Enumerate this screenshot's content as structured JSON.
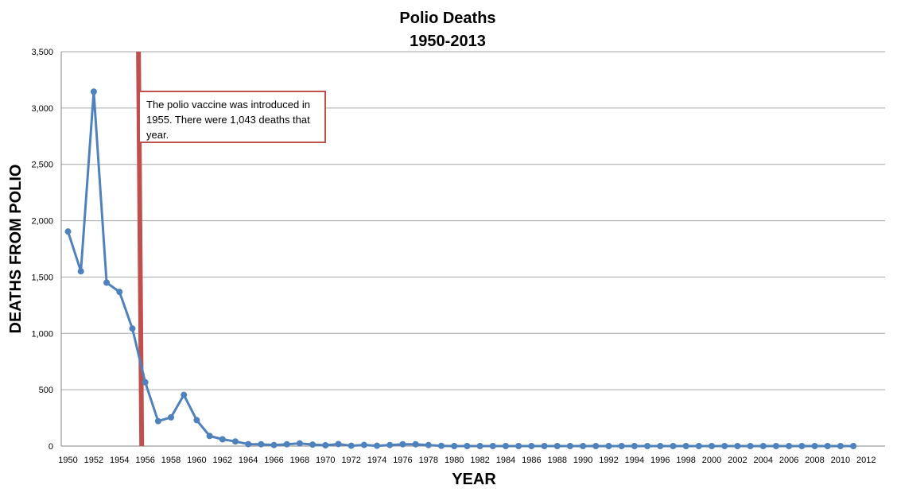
{
  "chart_data": {
    "type": "line",
    "title": "Polio Deaths",
    "subtitle": "1950-2013",
    "xlabel": "YEAR",
    "ylabel": "DEATHS FROM POLIO",
    "ylim": [
      0,
      3500
    ],
    "yticks": [
      0,
      500,
      1000,
      1500,
      2000,
      2500,
      3000,
      3500
    ],
    "ytick_labels": [
      "0",
      "500",
      "1,000",
      "1,500",
      "2,000",
      "2,500",
      "3,000",
      "3,500"
    ],
    "xlim": [
      1950,
      2012
    ],
    "xtick_labels": [
      "1950",
      "1952",
      "1954",
      "1956",
      "1958",
      "1960",
      "1962",
      "1964",
      "1966",
      "1968",
      "1970",
      "1972",
      "1974",
      "1976",
      "1978",
      "1980",
      "1982",
      "1984",
      "1986",
      "1988",
      "1990",
      "1992",
      "1994",
      "1996",
      "1998",
      "2000",
      "2002",
      "2004",
      "2006",
      "2008",
      "2010",
      "2012"
    ],
    "grid": "horizontal",
    "series": [
      {
        "color": "#4F81BD",
        "x": [
          1950,
          1951,
          1952,
          1953,
          1954,
          1955,
          1956,
          1957,
          1958,
          1959,
          1960,
          1961,
          1962,
          1963,
          1964,
          1965,
          1966,
          1967,
          1968,
          1969,
          1970,
          1971,
          1972,
          1973,
          1974,
          1975,
          1976,
          1977,
          1978,
          1979,
          1980,
          1981,
          1982,
          1983,
          1984,
          1985,
          1986,
          1987,
          1988,
          1989,
          1990,
          1991,
          1992,
          1993,
          1994,
          1995,
          1996,
          1997,
          1998,
          1999,
          2000,
          2001,
          2002,
          2003,
          2004,
          2005,
          2006,
          2007,
          2008,
          2009,
          2010,
          2011
        ],
        "values": [
          1904,
          1551,
          3145,
          1450,
          1368,
          1043,
          566,
          221,
          255,
          454,
          230,
          90,
          60,
          41,
          17,
          16,
          9,
          16,
          24,
          13,
          7,
          18,
          3,
          10,
          3,
          9,
          16,
          16,
          9,
          2,
          0,
          0,
          0,
          0,
          0,
          0,
          0,
          0,
          0,
          0,
          0,
          0,
          0,
          0,
          0,
          0,
          0,
          0,
          0,
          0,
          0,
          0,
          0,
          0,
          0,
          0,
          0,
          0,
          0,
          0,
          0,
          0
        ]
      }
    ],
    "vertical_marker": {
      "x": 1955.6,
      "color": "#C0504D"
    },
    "annotation": "The polio vaccine was introduced in 1955. There were 1,043 deaths that year."
  }
}
